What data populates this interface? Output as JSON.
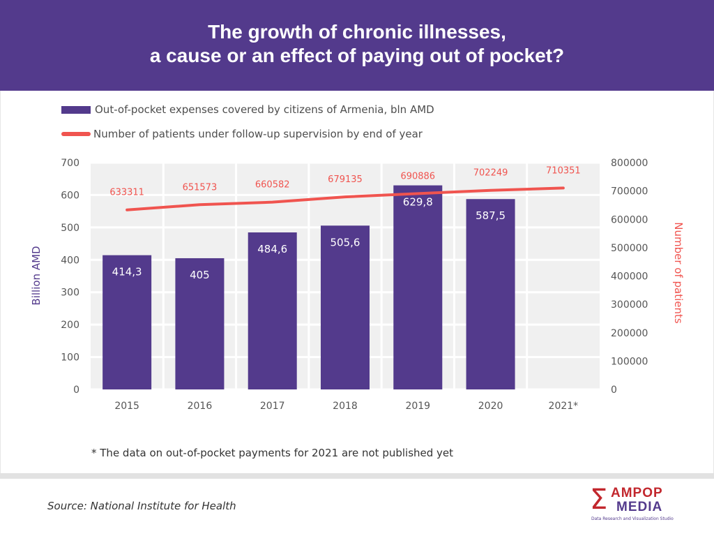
{
  "header": {
    "title_line1": "The growth of chronic illnesses,",
    "title_line2": "a cause or an effect of paying out of pocket?"
  },
  "chart_data": {
    "type": "bar+line",
    "categories": [
      "2015",
      "2016",
      "2017",
      "2018",
      "2019",
      "2020",
      "2021*"
    ],
    "series": [
      {
        "name": "Out-of-pocket expenses covered by citizens of Armenia, bln AMD",
        "type": "bar",
        "axis": "left",
        "values": [
          414.3,
          405,
          484.6,
          505.6,
          629.8,
          587.5,
          null
        ],
        "labels": [
          "414,3",
          "405",
          "484,6",
          "505,6",
          "629,8",
          "587,5",
          ""
        ],
        "color": "#533a8c"
      },
      {
        "name": "Number of patients under follow-up supervision by end of year",
        "type": "line",
        "axis": "right",
        "values": [
          633311,
          651573,
          660582,
          679135,
          690886,
          702249,
          710351
        ],
        "labels": [
          "633311",
          "651573",
          "660582",
          "679135",
          "690886",
          "702249",
          "710351"
        ],
        "color": "#f0544f"
      }
    ],
    "ylabel_left": "Billion AMD",
    "ylabel_right": "Number of patients",
    "ylim_left": [
      0,
      700
    ],
    "yticks_left": [
      "0",
      "100",
      "200",
      "300",
      "400",
      "500",
      "600",
      "700"
    ],
    "ylim_right": [
      0,
      800000
    ],
    "yticks_right": [
      "0",
      "100000",
      "200000",
      "300000",
      "400000",
      "500000",
      "600000",
      "700000",
      "800000"
    ],
    "grid": true,
    "legend": "top-left"
  },
  "note": "* The data on out-of-pocket payments for 2021 are not published yet",
  "source": "Source: National Institute for Health",
  "logo": {
    "symbol": "Σ",
    "word1": "AMPOP",
    "word2": "MEDIA",
    "tagline": "Data Research and Visualization Studio"
  }
}
